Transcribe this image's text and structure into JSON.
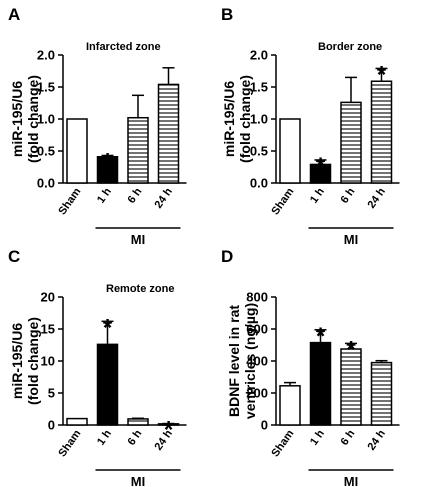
{
  "chart_data": [
    {
      "panel": "A",
      "type": "bar",
      "title": "Infarcted zone",
      "ylabel": "miR-195/U6 (fold change)",
      "ylim": [
        0,
        2.0
      ],
      "yticks": [
        "0.0",
        "0.5",
        "1.0",
        "1.5",
        "2.0"
      ],
      "categories": [
        "Sham",
        "1 h",
        "6 h",
        "24 h"
      ],
      "values": [
        1.0,
        0.41,
        1.02,
        1.54
      ],
      "errors": [
        0,
        0.02,
        0.35,
        0.26
      ],
      "significant": [
        false,
        true,
        false,
        false
      ],
      "group_label": "MI",
      "group_span": [
        1,
        3
      ],
      "fills": [
        "white",
        "black",
        "hlines",
        "hlines"
      ]
    },
    {
      "panel": "B",
      "type": "bar",
      "title": "Border zone",
      "ylabel": "miR-195/U6 (fold change)",
      "ylim": [
        0,
        2.0
      ],
      "yticks": [
        "0.0",
        "0.5",
        "1.0",
        "1.5",
        "2.0"
      ],
      "categories": [
        "Sham",
        "1 h",
        "6 h",
        "24 h"
      ],
      "values": [
        1.0,
        0.29,
        1.26,
        1.59
      ],
      "errors": [
        0,
        0.07,
        0.39,
        0.2
      ],
      "significant": [
        false,
        true,
        false,
        true
      ],
      "group_label": "MI",
      "group_span": [
        1,
        3
      ],
      "fills": [
        "white",
        "black",
        "hlines",
        "hlines"
      ]
    },
    {
      "panel": "C",
      "type": "bar",
      "title": "Remote zone",
      "ylabel": "miR-195/U6 (fold change)",
      "ylim": [
        0,
        20
      ],
      "yticks": [
        "0",
        "5",
        "10",
        "15",
        "20"
      ],
      "categories": [
        "Sham",
        "1 h",
        "6 h",
        "24 h"
      ],
      "values": [
        1.0,
        12.6,
        0.95,
        0.18
      ],
      "errors": [
        0,
        3.6,
        0.1,
        0.05
      ],
      "significant": [
        false,
        true,
        false,
        true
      ],
      "group_label": "MI",
      "group_span": [
        1,
        3
      ],
      "fills": [
        "white",
        "black",
        "hlines",
        "hlines"
      ]
    },
    {
      "panel": "D",
      "type": "bar",
      "title": "",
      "ylabel": "BDNF level in rat ventricles (ng/µg)",
      "ylim": [
        0,
        800
      ],
      "yticks": [
        "0",
        "200",
        "400",
        "600",
        "800"
      ],
      "categories": [
        "Sham",
        "1 h",
        "6 h",
        "24 h"
      ],
      "values": [
        245,
        515,
        475,
        390
      ],
      "errors": [
        20,
        80,
        35,
        12
      ],
      "significant": [
        false,
        true,
        true,
        false
      ],
      "group_label": "MI",
      "group_span": [
        1,
        3
      ],
      "fills": [
        "white",
        "black",
        "hlines",
        "hlines"
      ]
    }
  ],
  "colors": {
    "ink": "#000000",
    "background": "#ffffff"
  }
}
